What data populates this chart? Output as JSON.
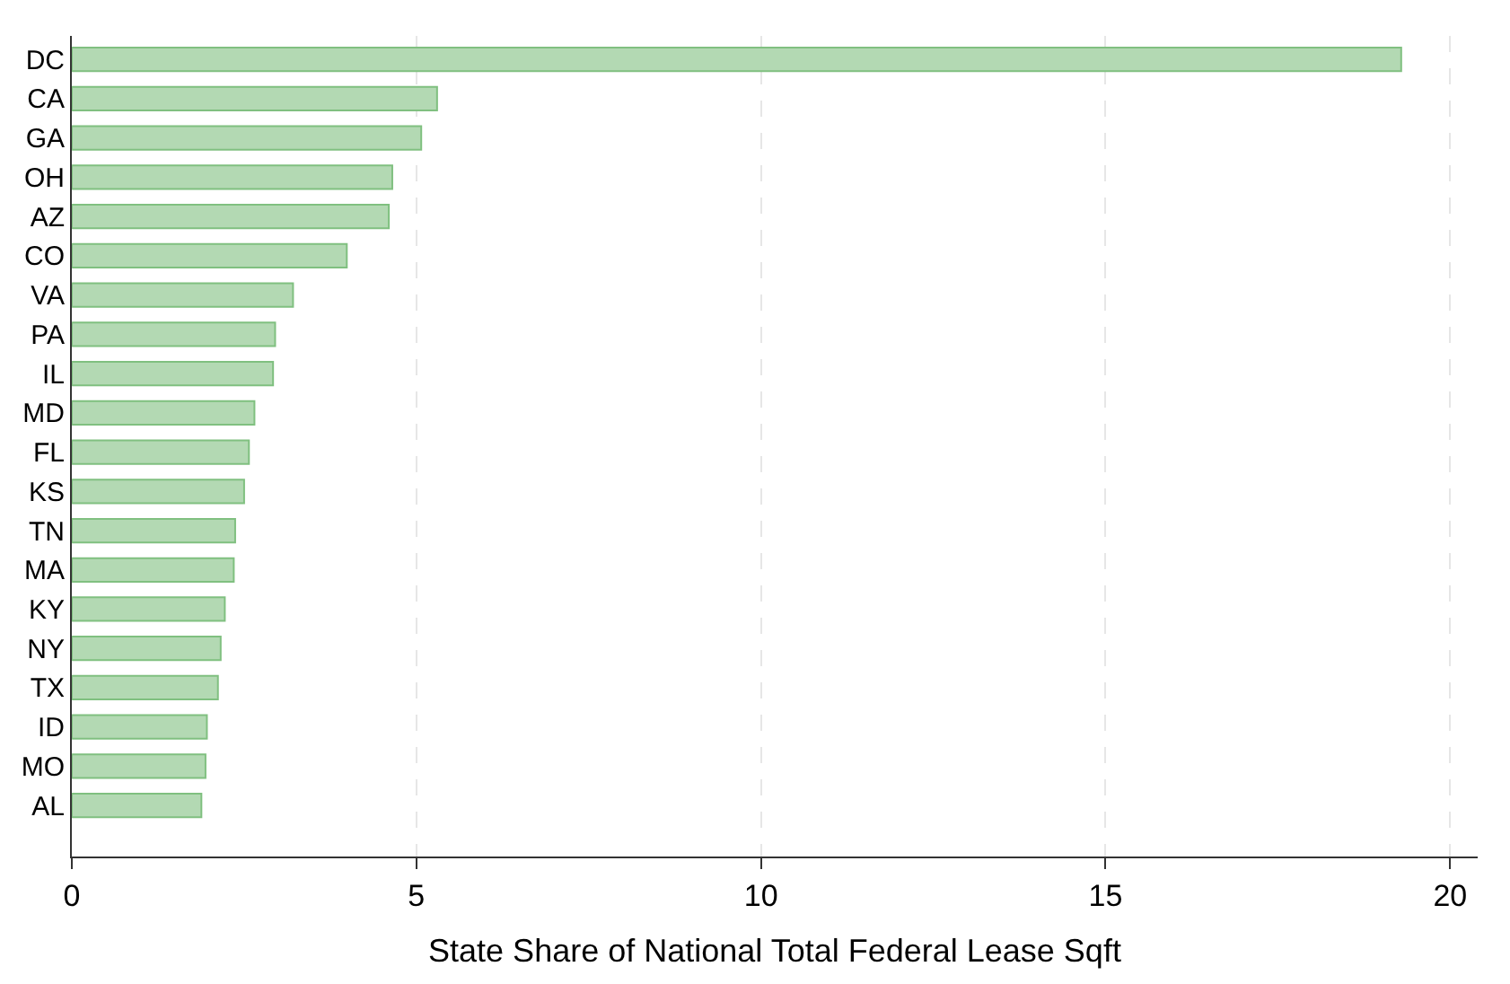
{
  "chart_data": {
    "type": "bar",
    "orientation": "horizontal",
    "xlabel": "State Share of National Total Federal Lease Sqft",
    "categories": [
      "DC",
      "CA",
      "GA",
      "OH",
      "AZ",
      "CO",
      "VA",
      "PA",
      "IL",
      "MD",
      "FL",
      "KS",
      "TN",
      "MA",
      "KY",
      "NY",
      "TX",
      "ID",
      "MO",
      "AL"
    ],
    "values": [
      19.29,
      5.3,
      5.07,
      4.65,
      4.6,
      3.99,
      3.21,
      2.95,
      2.92,
      2.65,
      2.57,
      2.5,
      2.37,
      2.35,
      2.22,
      2.16,
      2.12,
      1.96,
      1.94,
      1.88
    ],
    "color": "#b3d9b3",
    "xlim": [
      0,
      20.4
    ],
    "xticks": [
      0,
      5,
      10,
      15,
      20
    ],
    "grid": "x",
    "legend": false
  }
}
